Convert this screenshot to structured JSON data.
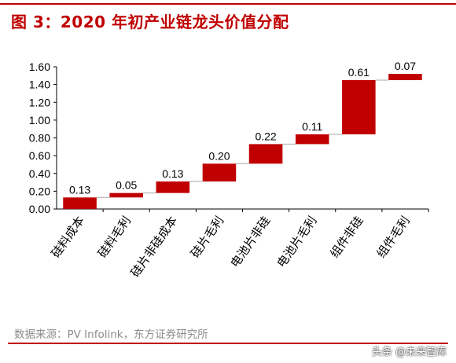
{
  "figure": {
    "title": "图 3：2020 年初产业链龙头价值分配",
    "source": "数据来源：PV Infolink，东方证券研究所",
    "watermark": "头条 @未来智库"
  },
  "colors": {
    "bar": "#c00000",
    "accent": "#c00000",
    "connector": "#a6a6a6"
  },
  "chart_data": {
    "type": "bar",
    "subtype": "waterfall",
    "categories": [
      "硅料成本",
      "硅料毛利",
      "硅片非硅成本",
      "硅片毛利",
      "电池片非硅",
      "电池片毛利",
      "组件非硅",
      "组件毛利"
    ],
    "values": [
      0.13,
      0.05,
      0.13,
      0.2,
      0.22,
      0.11,
      0.61,
      0.07
    ],
    "bar_bases": [
      0.0,
      0.13,
      0.18,
      0.31,
      0.51,
      0.73,
      0.84,
      1.45
    ],
    "data_labels": [
      "0.13",
      "0.05",
      "0.13",
      "0.20",
      "0.22",
      "0.11",
      "0.61",
      "0.07"
    ],
    "ylim": [
      0,
      1.6
    ],
    "yticks": [
      "0.00",
      "0.20",
      "0.40",
      "0.60",
      "0.80",
      "1.00",
      "1.20",
      "1.40",
      "1.60"
    ],
    "grid": false,
    "legend": "none",
    "xlabel": "",
    "ylabel": ""
  }
}
